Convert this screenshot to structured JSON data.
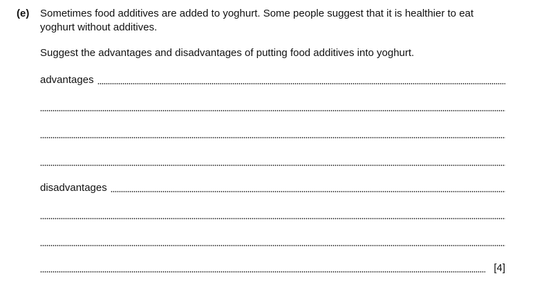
{
  "question": {
    "label": "(e)",
    "stem": "Sometimes food additives are added to yoghurt. Some people suggest that it is healthier to eat yoghurt without additives.",
    "prompt": "Suggest the advantages and disadvantages of putting food additives into yoghurt.",
    "advantages_label": "advantages",
    "disadvantages_label": "disadvantages",
    "marks": "[4]"
  }
}
